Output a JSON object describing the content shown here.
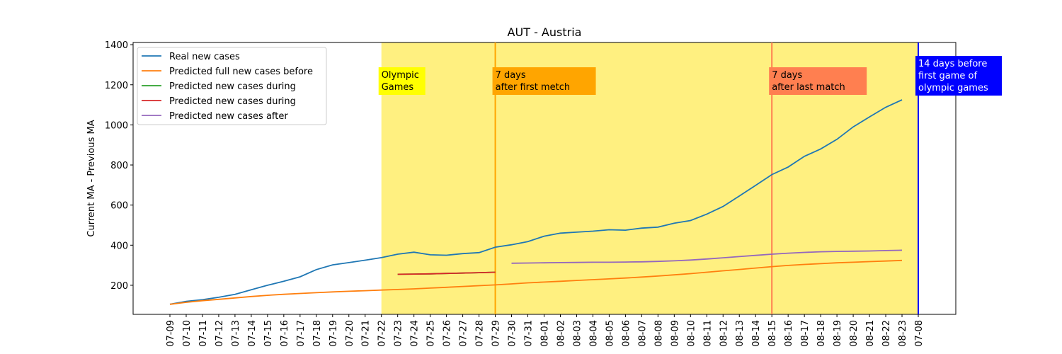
{
  "chart_data": {
    "type": "line",
    "title": "AUT - Austria",
    "y_label": "Current MA - Previous MA",
    "categories": [
      "07-09",
      "07-10",
      "07-11",
      "07-12",
      "07-13",
      "07-14",
      "07-15",
      "07-16",
      "07-17",
      "07-18",
      "07-19",
      "07-20",
      "07-21",
      "07-22",
      "07-23",
      "07-24",
      "07-25",
      "07-26",
      "07-27",
      "07-28",
      "07-29",
      "07-30",
      "07-31",
      "08-01",
      "08-02",
      "08-03",
      "08-04",
      "08-05",
      "08-06",
      "08-07",
      "08-08",
      "08-09",
      "08-10",
      "08-11",
      "08-12",
      "08-13",
      "08-14",
      "08-15",
      "08-16",
      "08-17",
      "08-18",
      "08-19",
      "08-20",
      "08-21",
      "08-22",
      "08-23",
      "07-08"
    ],
    "series": [
      {
        "name": "Real new cases",
        "color": "#1f77b4",
        "values": [
          105,
          120,
          128,
          140,
          155,
          178,
          200,
          220,
          242,
          278,
          302,
          313,
          325,
          338,
          355,
          365,
          352,
          350,
          358,
          363,
          390,
          402,
          418,
          445,
          460,
          465,
          470,
          477,
          475,
          485,
          490,
          510,
          523,
          555,
          593,
          645,
          698,
          752,
          790,
          843,
          880,
          928,
          990,
          1040,
          1088,
          1125,
          null
        ]
      },
      {
        "name": "Predicted full new cases before",
        "color": "#ff7f0e",
        "values": [
          105,
          115,
          123,
          130,
          137,
          144,
          150,
          155,
          159,
          163,
          167,
          170,
          173,
          176,
          179,
          182,
          186,
          190,
          194,
          198,
          202,
          207,
          212,
          216,
          220,
          224,
          228,
          232,
          236,
          241,
          246,
          252,
          258,
          265,
          272,
          279,
          286,
          293,
          299,
          304,
          308,
          312,
          315,
          318,
          321,
          324,
          null
        ]
      },
      {
        "name": "Predicted new cases during",
        "color": "#2ca02c",
        "values": [
          null,
          null,
          null,
          null,
          null,
          null,
          null,
          null,
          null,
          null,
          null,
          null,
          null,
          null,
          255,
          256,
          257,
          259,
          261,
          263,
          265,
          null,
          null,
          null,
          null,
          null,
          null,
          null,
          null,
          null,
          null,
          null,
          null,
          null,
          null,
          null,
          null,
          null,
          null,
          null,
          null,
          null,
          null,
          null,
          null,
          null,
          null
        ]
      },
      {
        "name": "Predicted new cases during",
        "color": "#d62728",
        "values": [
          null,
          null,
          null,
          null,
          null,
          null,
          null,
          null,
          null,
          null,
          null,
          null,
          null,
          null,
          255,
          256,
          257,
          259,
          261,
          263,
          265,
          null,
          null,
          null,
          null,
          null,
          null,
          null,
          null,
          null,
          null,
          null,
          null,
          null,
          null,
          null,
          null,
          null,
          null,
          null,
          null,
          null,
          null,
          null,
          null,
          null,
          null
        ]
      },
      {
        "name": "Predicted new cases after",
        "color": "#9467bd",
        "values": [
          null,
          null,
          null,
          null,
          null,
          null,
          null,
          null,
          null,
          null,
          null,
          null,
          null,
          null,
          null,
          null,
          null,
          null,
          null,
          null,
          null,
          310,
          311,
          312,
          313,
          314,
          315,
          315,
          316,
          317,
          319,
          322,
          326,
          331,
          337,
          343,
          349,
          355,
          360,
          364,
          367,
          369,
          370,
          371,
          373,
          375,
          null
        ]
      }
    ],
    "ylim": [
      55,
      1411
    ],
    "yticks": [
      200,
      400,
      600,
      800,
      1000,
      1200,
      1400
    ],
    "legend": "upper left",
    "shade": {
      "from": "07-22",
      "to": "07-08",
      "color": "#fff080"
    },
    "vlines": [
      {
        "at": "07-29",
        "color": "#ffa500"
      },
      {
        "at": "08-15",
        "color": "#ff7f50"
      },
      {
        "at": "07-08",
        "color": "#0000ff"
      }
    ],
    "annotations": [
      {
        "at": "07-22",
        "lines": [
          "Olympic",
          "Games"
        ],
        "color": "#ffff00",
        "text_color": "#000000"
      },
      {
        "at": "07-29",
        "lines": [
          "7 days",
          "after first metch"
        ],
        "color": "#ffa500",
        "text_color": "#000000"
      },
      {
        "at": "08-15",
        "lines": [
          "7 days",
          "after last match"
        ],
        "color": "#ff7f50",
        "text_color": "#000000"
      },
      {
        "at": "07-08",
        "lines": [
          "14 days before",
          "first game of",
          "olympic games"
        ],
        "color": "#0000ff",
        "text_color": "#ffffff"
      }
    ]
  }
}
